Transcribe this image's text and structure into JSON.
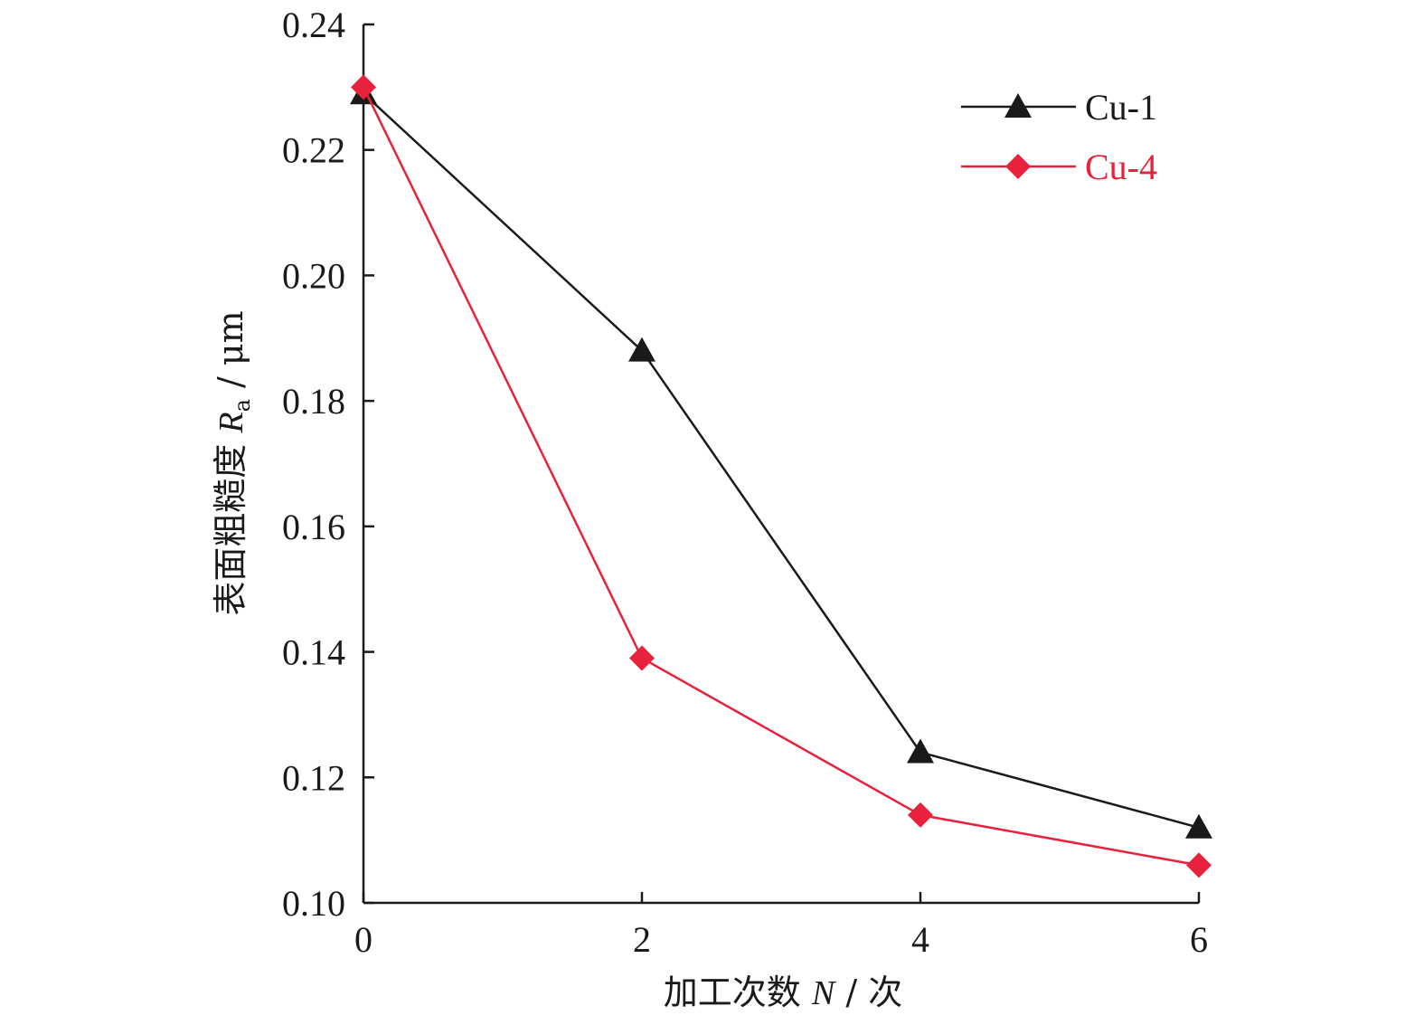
{
  "chart_data": {
    "type": "line",
    "xlabel": {
      "main": "加工次数 ",
      "var": "N",
      "unit": " / 次"
    },
    "ylabel": {
      "main": "表面粗糙度 ",
      "var": "R",
      "sub": "a",
      "unit": " / μm"
    },
    "xlim": [
      0,
      6
    ],
    "ylim": [
      0.1,
      0.24
    ],
    "xticks": [
      0,
      2,
      4,
      6
    ],
    "yticks": [
      "0.10",
      "0.12",
      "0.14",
      "0.16",
      "0.18",
      "0.20",
      "0.22",
      "0.24"
    ],
    "grid": false,
    "legend_position": "top-right",
    "x": [
      0,
      2,
      4,
      6
    ],
    "series": [
      {
        "name": "Cu-1",
        "values": [
          0.229,
          0.188,
          0.124,
          0.112
        ],
        "color": "#1a1a1a",
        "marker": "triangle-up"
      },
      {
        "name": "Cu-4",
        "values": [
          0.23,
          0.139,
          0.114,
          0.106
        ],
        "color": "#e8213c",
        "marker": "diamond"
      }
    ]
  }
}
